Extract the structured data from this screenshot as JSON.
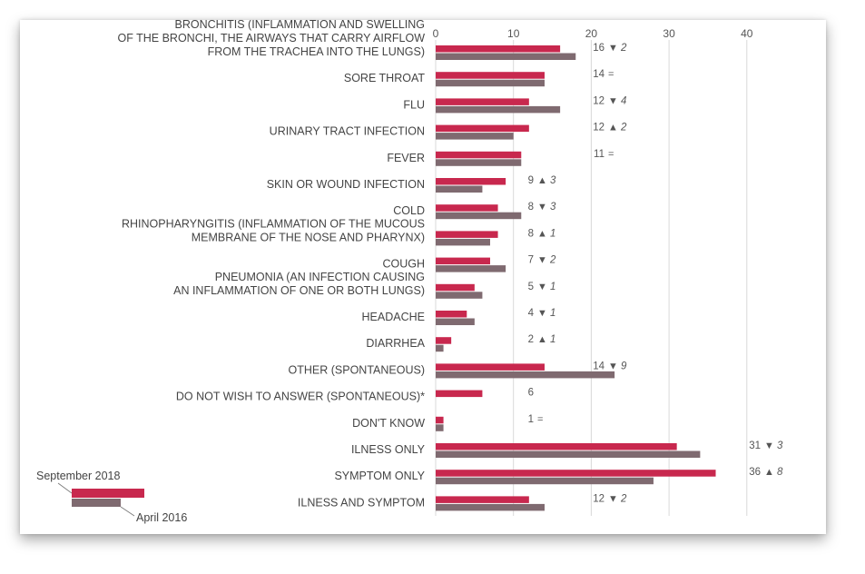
{
  "chart_data": {
    "type": "bar",
    "orientation": "horizontal",
    "title": "",
    "xlabel": "",
    "ylabel": "",
    "xlim": [
      0,
      40
    ],
    "xticks": [
      0,
      10,
      20,
      30,
      40
    ],
    "grid": true,
    "categories": [
      [
        "BRONCHITIS (INFLAMMATION AND SWELLING",
        "OF THE BRONCHI, THE AIRWAYS THAT CARRY AIRFLOW",
        "FROM THE TRACHEA INTO THE LUNGS)"
      ],
      [
        "SORE THROAT"
      ],
      [
        "FLU"
      ],
      [
        "URINARY TRACT INFECTION"
      ],
      [
        "FEVER"
      ],
      [
        "SKIN OR WOUND INFECTION"
      ],
      [
        "COLD"
      ],
      [
        "RHINOPHARYNGITIS (INFLAMMATION OF THE MUCOUS",
        "MEMBRANE OF THE NOSE AND PHARYNX)"
      ],
      [
        "COUGH"
      ],
      [
        "PNEUMONIA (AN INFECTION CAUSING",
        "AN INFLAMMATION OF ONE OR BOTH LUNGS)"
      ],
      [
        "HEADACHE"
      ],
      [
        "DIARRHEA"
      ],
      [
        "OTHER (SPONTANEOUS)"
      ],
      [
        "DO NOT WISH TO ANSWER (SPONTANEOUS)*"
      ],
      [
        "DON'T KNOW"
      ],
      [
        "ILNESS ONLY"
      ],
      [
        "SYMPTOM ONLY"
      ],
      [
        "ILNESS AND SYMPTOM"
      ]
    ],
    "series": [
      {
        "name": "September 2018",
        "color": "#c8284e",
        "values": [
          16,
          14,
          12,
          12,
          11,
          9,
          8,
          8,
          7,
          5,
          4,
          2,
          14,
          6,
          1,
          31,
          36,
          12
        ]
      },
      {
        "name": "April 2016",
        "color": "#7f6a70",
        "values": [
          18,
          14,
          16,
          10,
          11,
          6,
          11,
          7,
          9,
          6,
          5,
          1,
          23,
          null,
          1,
          34,
          28,
          14
        ]
      }
    ],
    "annotations": [
      {
        "value": "16",
        "symbol": "▼",
        "change": "2"
      },
      {
        "value": "14",
        "symbol": "=",
        "change": ""
      },
      {
        "value": "12",
        "symbol": "▼",
        "change": "4"
      },
      {
        "value": "12",
        "symbol": "▲",
        "change": "2"
      },
      {
        "value": "11",
        "symbol": "=",
        "change": ""
      },
      {
        "value": "9",
        "symbol": "▲",
        "change": "3"
      },
      {
        "value": "8",
        "symbol": "▼",
        "change": "3"
      },
      {
        "value": "8",
        "symbol": "▲",
        "change": "1"
      },
      {
        "value": "7",
        "symbol": "▼",
        "change": "2"
      },
      {
        "value": "5",
        "symbol": "▼",
        "change": "1"
      },
      {
        "value": "4",
        "symbol": "▼",
        "change": "1"
      },
      {
        "value": "2",
        "symbol": "▲",
        "change": "1"
      },
      {
        "value": "14",
        "symbol": "▼",
        "change": "9"
      },
      {
        "value": "6",
        "symbol": "",
        "change": ""
      },
      {
        "value": "1",
        "symbol": "=",
        "change": ""
      },
      {
        "value": "31",
        "symbol": "▼",
        "change": "3"
      },
      {
        "value": "36",
        "symbol": "▲",
        "change": "8"
      },
      {
        "value": "12",
        "symbol": "▼",
        "change": "2"
      }
    ],
    "legend": {
      "placement": "bottom-left",
      "items": [
        "September 2018",
        "April 2016"
      ]
    }
  }
}
